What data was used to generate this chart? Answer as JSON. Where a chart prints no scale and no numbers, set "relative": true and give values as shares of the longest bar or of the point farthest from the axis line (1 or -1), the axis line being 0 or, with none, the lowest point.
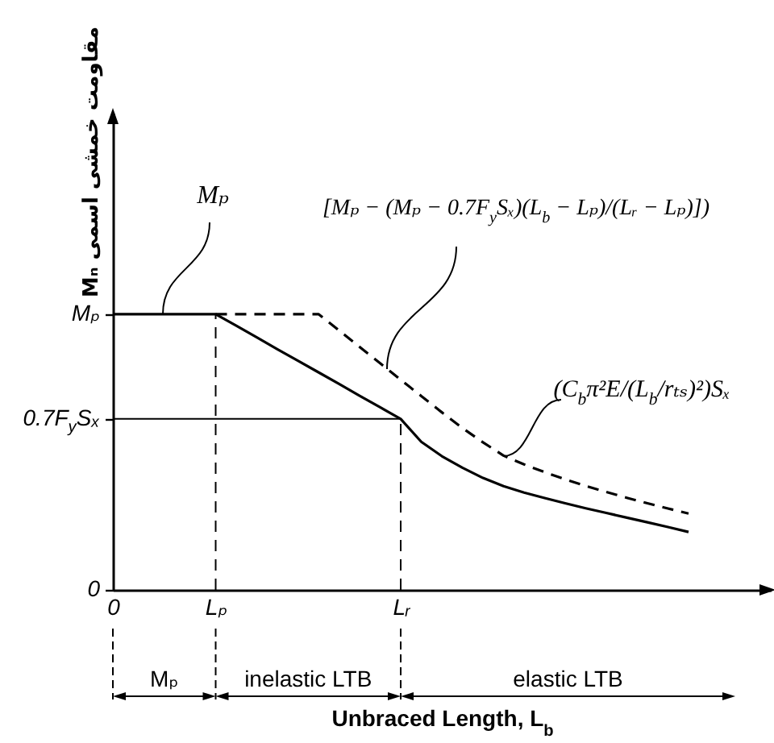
{
  "chart_data": {
    "type": "line",
    "relative": true,
    "xlabel": "Unbraced Length, L$_{b}$",
    "ylabel": "مقاومت خمشی اسمی Mₙ",
    "categories": [
      "0",
      null,
      null,
      null,
      null,
      "Lₚ",
      null,
      null,
      null,
      null,
      null,
      null,
      null,
      null,
      "Lᵣ",
      null,
      null,
      null,
      null,
      null,
      null,
      null,
      null,
      null,
      null,
      null,
      null,
      null,
      null,
      null,
      null,
      null,
      null
    ],
    "series": [
      {
        "color": "#000000",
        "values": [
          1,
          1,
          1,
          1,
          1,
          1,
          0.958,
          0.916,
          0.873,
          0.831,
          0.789,
          0.747,
          0.704,
          0.662,
          0.62,
          0.537,
          0.485,
          0.443,
          0.406,
          0.376,
          0.353,
          0.333,
          0.314,
          0.296,
          0.279,
          0.262,
          0.245,
          0.228,
          0.21,
          null,
          null,
          null,
          null
        ]
      },
      {
        "color": "#000000",
        "line_style": "dashed",
        "values": [
          null,
          null,
          null,
          null,
          null,
          1,
          1,
          1,
          1,
          1,
          1,
          0.941,
          0.881,
          0.822,
          0.762,
          0.703,
          0.644,
          0.587,
          0.535,
          0.487,
          0.455,
          0.427,
          0.401,
          0.377,
          0.355,
          0.334,
          0.314,
          0.295,
          0.277,
          null,
          null,
          null,
          null
        ]
      }
    ],
    "ref_lines": [
      {
        "axis": "x",
        "value": "Lₚ",
        "line_style": "dashed"
      },
      {
        "axis": "x",
        "value": "Lᵣ",
        "line_style": "dashed"
      },
      {
        "axis": "y",
        "value": 0.62,
        "line_style": "solid",
        "label": "0.7F$_{y}$Sₓ"
      }
    ],
    "annotations": [
      "0",
      "Mₚ",
      "Mₚ",
      "[Mₚ − (Mₚ − 0.7F$_{y}$Sₓ)(L$_{b}$ − Lₚ)/(Lᵣ − Lₚ)])",
      "(C$_{b}$π²E/(L$_{b}$/rₜₛ)²)Sₓ",
      "Mₚ",
      "inelastic LTB",
      "elastic LTB"
    ],
    "grid": false
  }
}
